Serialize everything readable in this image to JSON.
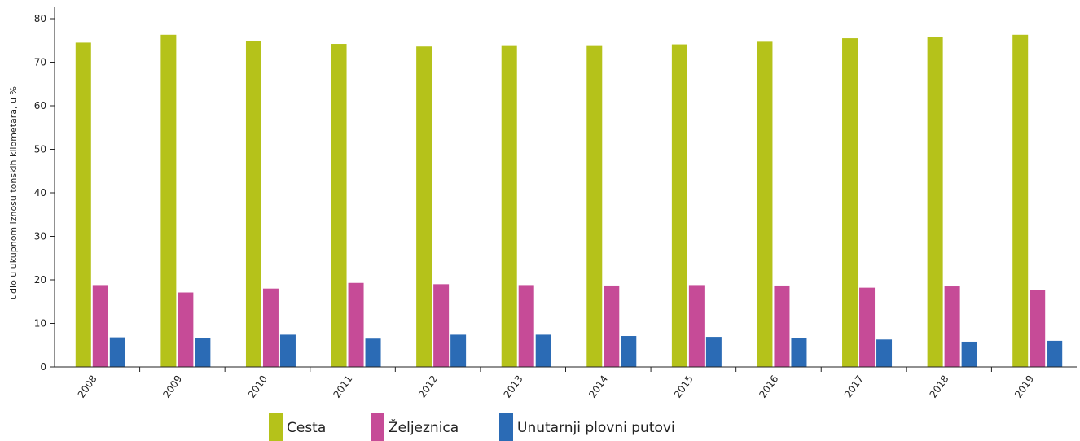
{
  "chart_data": {
    "type": "bar",
    "title": "",
    "xlabel": "",
    "ylabel": "udio u ukupnom iznosu tonskih kilometara, u %",
    "ylim": [
      0,
      80
    ],
    "yticks": [
      0,
      10,
      20,
      30,
      40,
      50,
      60,
      70,
      80
    ],
    "grid": false,
    "legend_position": "bottom",
    "categories": [
      "2008",
      "2009",
      "2010",
      "2011",
      "2012",
      "2013",
      "2014",
      "2015",
      "2016",
      "2017",
      "2018",
      "2019"
    ],
    "series": [
      {
        "name": "Cesta",
        "color": "#b5c21a",
        "values": [
          74.5,
          76.3,
          74.8,
          74.2,
          73.6,
          73.9,
          73.9,
          74.1,
          74.7,
          75.5,
          75.8,
          76.3
        ]
      },
      {
        "name": "Željeznica",
        "color": "#c64b97",
        "values": [
          18.8,
          17.1,
          18.0,
          19.3,
          19.0,
          18.8,
          18.7,
          18.8,
          18.7,
          18.2,
          18.5,
          17.7
        ]
      },
      {
        "name": "Unutarnji plovni putovi",
        "color": "#2b6bb5",
        "values": [
          6.8,
          6.6,
          7.4,
          6.5,
          7.4,
          7.4,
          7.1,
          6.9,
          6.6,
          6.3,
          5.8,
          6.0
        ]
      }
    ]
  }
}
